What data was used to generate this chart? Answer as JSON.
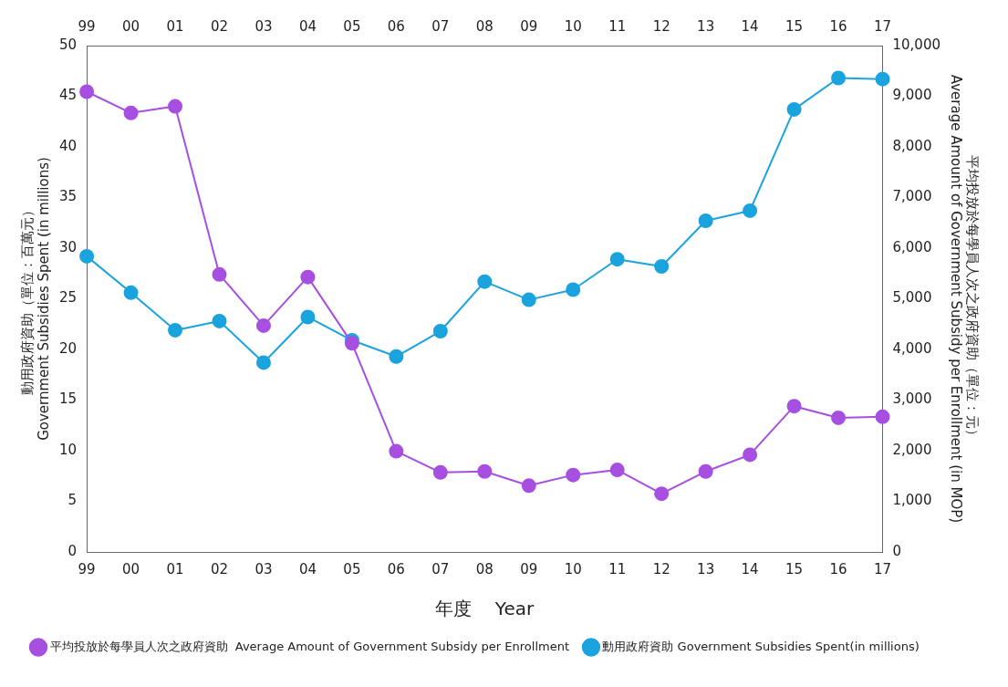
{
  "chart_data": {
    "type": "line",
    "categories": [
      "99",
      "00",
      "01",
      "02",
      "03",
      "04",
      "05",
      "06",
      "07",
      "08",
      "09",
      "10",
      "11",
      "12",
      "13",
      "14",
      "15",
      "16",
      "17"
    ],
    "xlabel": "年度    Year",
    "ylabel": "動用政府資助（單位：百萬元）\nGovernment Subsidies Spent (in millions)",
    "y2label": "平均投放於每學員人次之政府資助（單位：元）\nAverage Amount of Government Subsidy per Enrollment (in MOP)",
    "ylim": [
      0,
      50
    ],
    "yticks": [
      0,
      5,
      10,
      15,
      20,
      25,
      30,
      35,
      40,
      45,
      50
    ],
    "y2lim": [
      0,
      10000
    ],
    "y2ticks": [
      {
        "value": 0,
        "label": "0"
      },
      {
        "value": 1000,
        "label": "1,000"
      },
      {
        "value": 2000,
        "label": "2,000"
      },
      {
        "value": 3000,
        "label": "3,000"
      },
      {
        "value": 4000,
        "label": "4,000"
      },
      {
        "value": 5000,
        "label": "5,000"
      },
      {
        "value": 6000,
        "label": "6,000"
      },
      {
        "value": 7000,
        "label": "7,000"
      },
      {
        "value": 8000,
        "label": "8,000"
      },
      {
        "value": 9000,
        "label": "9,000"
      },
      {
        "value": 10000,
        "label": "10,000"
      }
    ],
    "grid": false,
    "legend": "bottom",
    "marker": "circle",
    "line_style": "solid",
    "series": [
      {
        "name": "動用政府資助 Government Subsidies Spent(in millions)",
        "color": "#1aa3dd",
        "values": [
          29.2,
          25.6,
          21.9,
          22.8,
          18.7,
          23.2,
          20.9,
          19.3,
          21.8,
          26.7,
          24.9,
          25.9,
          28.9,
          28.2,
          32.7,
          33.7,
          43.7,
          46.8,
          46.7
        ]
      },
      {
        "name": "平均投放於每學員人次之政府資助  Average Amount of Government Subsidy per Enrollment",
        "color": "#a64fe0",
        "axis": "y2",
        "values": [
          9090,
          8670,
          8800,
          5480,
          4470,
          5430,
          4120,
          1990,
          1570,
          1590,
          1310,
          1520,
          1620,
          1150,
          1590,
          1920,
          2880,
          2650,
          2670
        ]
      }
    ]
  }
}
